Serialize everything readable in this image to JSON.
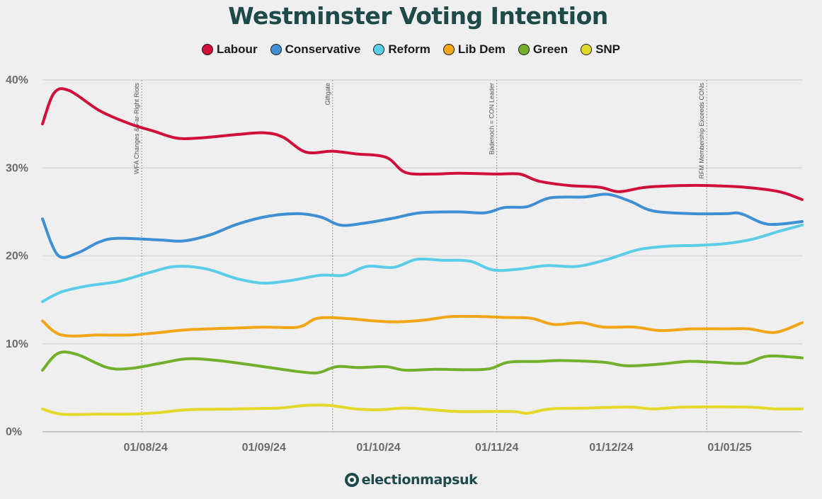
{
  "chart_data": {
    "type": "line",
    "title": "Westminster Voting Intention",
    "yticks": [
      "0%",
      "10%",
      "20%",
      "30%",
      "40%"
    ],
    "ylim": [
      0,
      40
    ],
    "x_range": [
      "2024-07-05",
      "2025-01-20"
    ],
    "xticks": [
      {
        "date": "2024-08-01",
        "label": "01/08/24"
      },
      {
        "date": "2024-09-01",
        "label": "01/09/24"
      },
      {
        "date": "2024-10-01",
        "label": "01/10/24"
      },
      {
        "date": "2024-11-01",
        "label": "01/11/24"
      },
      {
        "date": "2024-12-01",
        "label": "01/12/24"
      },
      {
        "date": "2025-01-01",
        "label": "01/01/25"
      }
    ],
    "grid": true,
    "legend_position": "top",
    "annotations": [
      {
        "date": "2024-07-31",
        "label": "WFA Changes & Far-Right Riots"
      },
      {
        "date": "2024-09-19",
        "label": "Giftgate"
      },
      {
        "date": "2024-11-01",
        "label": "Badenoch = CON Leader"
      },
      {
        "date": "2024-12-26",
        "label": "RFM Membership Exceeds CONs"
      }
    ],
    "series": [
      {
        "name": "Labour",
        "color": "#d0103a",
        "points": [
          [
            "2024-07-05",
            35
          ],
          [
            "2024-07-08",
            38.5
          ],
          [
            "2024-07-12",
            38.8
          ],
          [
            "2024-07-20",
            36.5
          ],
          [
            "2024-07-28",
            35
          ],
          [
            "2024-08-03",
            34.2
          ],
          [
            "2024-08-09",
            33.4
          ],
          [
            "2024-08-15",
            33.4
          ],
          [
            "2024-08-25",
            33.8
          ],
          [
            "2024-09-01",
            34.0
          ],
          [
            "2024-09-06",
            33.5
          ],
          [
            "2024-09-12",
            31.8
          ],
          [
            "2024-09-19",
            31.9
          ],
          [
            "2024-09-25",
            31.6
          ],
          [
            "2024-10-03",
            31.2
          ],
          [
            "2024-10-08",
            29.5
          ],
          [
            "2024-10-15",
            29.3
          ],
          [
            "2024-10-22",
            29.4
          ],
          [
            "2024-11-01",
            29.3
          ],
          [
            "2024-11-07",
            29.3
          ],
          [
            "2024-11-12",
            28.5
          ],
          [
            "2024-11-20",
            28.0
          ],
          [
            "2024-11-28",
            27.8
          ],
          [
            "2024-12-03",
            27.3
          ],
          [
            "2024-12-10",
            27.8
          ],
          [
            "2024-12-20",
            28.0
          ],
          [
            "2024-12-26",
            28.0
          ],
          [
            "2025-01-05",
            27.8
          ],
          [
            "2025-01-14",
            27.3
          ],
          [
            "2025-01-20",
            26.4
          ]
        ]
      },
      {
        "name": "Conservative",
        "color": "#3f8fd3",
        "points": [
          [
            "2024-07-05",
            24.2
          ],
          [
            "2024-07-09",
            20.1
          ],
          [
            "2024-07-14",
            20.3
          ],
          [
            "2024-07-20",
            21.6
          ],
          [
            "2024-07-25",
            22.0
          ],
          [
            "2024-08-05",
            21.8
          ],
          [
            "2024-08-11",
            21.7
          ],
          [
            "2024-08-18",
            22.4
          ],
          [
            "2024-08-25",
            23.6
          ],
          [
            "2024-09-02",
            24.5
          ],
          [
            "2024-09-10",
            24.8
          ],
          [
            "2024-09-16",
            24.4
          ],
          [
            "2024-09-21",
            23.5
          ],
          [
            "2024-09-27",
            23.7
          ],
          [
            "2024-10-05",
            24.3
          ],
          [
            "2024-10-12",
            24.9
          ],
          [
            "2024-10-22",
            25.0
          ],
          [
            "2024-10-29",
            24.9
          ],
          [
            "2024-11-03",
            25.5
          ],
          [
            "2024-11-09",
            25.6
          ],
          [
            "2024-11-15",
            26.6
          ],
          [
            "2024-11-24",
            26.7
          ],
          [
            "2024-11-30",
            27.0
          ],
          [
            "2024-12-06",
            26.2
          ],
          [
            "2024-12-12",
            25.1
          ],
          [
            "2024-12-22",
            24.8
          ],
          [
            "2024-12-31",
            24.8
          ],
          [
            "2025-01-04",
            24.8
          ],
          [
            "2025-01-11",
            23.6
          ],
          [
            "2025-01-20",
            23.9
          ]
        ]
      },
      {
        "name": "Reform",
        "color": "#5bcde8",
        "points": [
          [
            "2024-07-05",
            14.8
          ],
          [
            "2024-07-10",
            15.9
          ],
          [
            "2024-07-17",
            16.6
          ],
          [
            "2024-07-25",
            17.1
          ],
          [
            "2024-08-02",
            18.1
          ],
          [
            "2024-08-09",
            18.8
          ],
          [
            "2024-08-17",
            18.5
          ],
          [
            "2024-08-25",
            17.4
          ],
          [
            "2024-09-01",
            16.9
          ],
          [
            "2024-09-08",
            17.2
          ],
          [
            "2024-09-16",
            17.8
          ],
          [
            "2024-09-22",
            17.8
          ],
          [
            "2024-09-28",
            18.8
          ],
          [
            "2024-10-05",
            18.7
          ],
          [
            "2024-10-11",
            19.6
          ],
          [
            "2024-10-18",
            19.5
          ],
          [
            "2024-10-25",
            19.4
          ],
          [
            "2024-10-31",
            18.4
          ],
          [
            "2024-11-07",
            18.5
          ],
          [
            "2024-11-14",
            18.9
          ],
          [
            "2024-11-22",
            18.8
          ],
          [
            "2024-11-30",
            19.6
          ],
          [
            "2024-12-08",
            20.7
          ],
          [
            "2024-12-16",
            21.1
          ],
          [
            "2024-12-24",
            21.2
          ],
          [
            "2024-12-31",
            21.4
          ],
          [
            "2025-01-07",
            21.9
          ],
          [
            "2025-01-14",
            22.8
          ],
          [
            "2025-01-20",
            23.5
          ]
        ]
      },
      {
        "name": "Lib Dem",
        "color": "#f0a616",
        "points": [
          [
            "2024-07-05",
            12.6
          ],
          [
            "2024-07-10",
            11.0
          ],
          [
            "2024-07-20",
            11.0
          ],
          [
            "2024-07-28",
            11.0
          ],
          [
            "2024-08-05",
            11.3
          ],
          [
            "2024-08-12",
            11.6
          ],
          [
            "2024-08-25",
            11.8
          ],
          [
            "2024-09-01",
            11.9
          ],
          [
            "2024-09-10",
            11.9
          ],
          [
            "2024-09-15",
            12.9
          ],
          [
            "2024-09-22",
            12.9
          ],
          [
            "2024-09-30",
            12.6
          ],
          [
            "2024-10-06",
            12.5
          ],
          [
            "2024-10-13",
            12.7
          ],
          [
            "2024-10-20",
            13.1
          ],
          [
            "2024-10-28",
            13.1
          ],
          [
            "2024-11-03",
            13.0
          ],
          [
            "2024-11-10",
            12.9
          ],
          [
            "2024-11-16",
            12.2
          ],
          [
            "2024-11-23",
            12.4
          ],
          [
            "2024-11-29",
            11.9
          ],
          [
            "2024-12-07",
            11.9
          ],
          [
            "2024-12-14",
            11.5
          ],
          [
            "2024-12-22",
            11.7
          ],
          [
            "2024-12-31",
            11.7
          ],
          [
            "2025-01-06",
            11.7
          ],
          [
            "2025-01-13",
            11.3
          ],
          [
            "2025-01-20",
            12.4
          ]
        ]
      },
      {
        "name": "Green",
        "color": "#72b02c",
        "points": [
          [
            "2024-07-05",
            7.0
          ],
          [
            "2024-07-09",
            8.9
          ],
          [
            "2024-07-14",
            8.8
          ],
          [
            "2024-07-22",
            7.3
          ],
          [
            "2024-07-28",
            7.2
          ],
          [
            "2024-08-05",
            7.8
          ],
          [
            "2024-08-12",
            8.3
          ],
          [
            "2024-08-20",
            8.1
          ],
          [
            "2024-09-01",
            7.4
          ],
          [
            "2024-09-09",
            6.9
          ],
          [
            "2024-09-15",
            6.7
          ],
          [
            "2024-09-20",
            7.4
          ],
          [
            "2024-09-26",
            7.3
          ],
          [
            "2024-10-03",
            7.4
          ],
          [
            "2024-10-08",
            7.0
          ],
          [
            "2024-10-16",
            7.1
          ],
          [
            "2024-10-29",
            7.1
          ],
          [
            "2024-11-04",
            7.9
          ],
          [
            "2024-11-12",
            8.0
          ],
          [
            "2024-11-18",
            8.1
          ],
          [
            "2024-11-29",
            7.9
          ],
          [
            "2024-12-05",
            7.5
          ],
          [
            "2024-12-14",
            7.7
          ],
          [
            "2024-12-21",
            8.0
          ],
          [
            "2024-12-28",
            7.9
          ],
          [
            "2025-01-05",
            7.8
          ],
          [
            "2025-01-11",
            8.6
          ],
          [
            "2025-01-20",
            8.4
          ]
        ]
      },
      {
        "name": "SNP",
        "color": "#e4d92a",
        "points": [
          [
            "2024-07-05",
            2.6
          ],
          [
            "2024-07-10",
            2.0
          ],
          [
            "2024-07-20",
            2.0
          ],
          [
            "2024-07-28",
            2.0
          ],
          [
            "2024-08-05",
            2.2
          ],
          [
            "2024-08-12",
            2.5
          ],
          [
            "2024-08-25",
            2.6
          ],
          [
            "2024-09-05",
            2.7
          ],
          [
            "2024-09-12",
            3.0
          ],
          [
            "2024-09-18",
            3.0
          ],
          [
            "2024-09-25",
            2.6
          ],
          [
            "2024-10-01",
            2.5
          ],
          [
            "2024-10-08",
            2.7
          ],
          [
            "2024-10-15",
            2.5
          ],
          [
            "2024-10-22",
            2.3
          ],
          [
            "2024-11-05",
            2.3
          ],
          [
            "2024-11-09",
            2.1
          ],
          [
            "2024-11-15",
            2.6
          ],
          [
            "2024-11-25",
            2.7
          ],
          [
            "2024-12-06",
            2.8
          ],
          [
            "2024-12-12",
            2.6
          ],
          [
            "2024-12-20",
            2.8
          ],
          [
            "2025-01-06",
            2.8
          ],
          [
            "2025-01-13",
            2.6
          ],
          [
            "2025-01-20",
            2.6
          ]
        ]
      }
    ]
  },
  "footer": {
    "brand": "electionmapsuk"
  }
}
